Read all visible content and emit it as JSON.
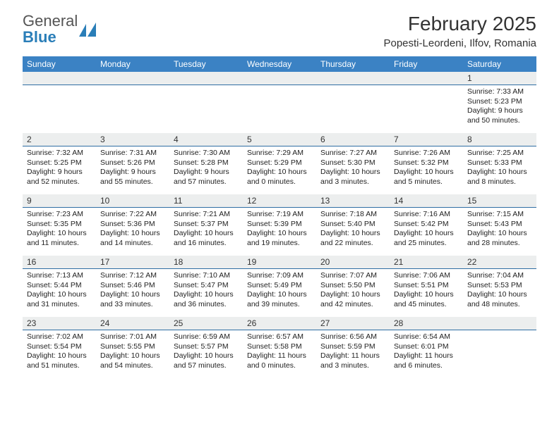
{
  "logo": {
    "text_general": "General",
    "text_blue": "Blue",
    "icon_color": "#2a7eb8"
  },
  "title": {
    "month": "February 2025",
    "location": "Popesti-Leordeni, Ilfov, Romania"
  },
  "colors": {
    "header_bg": "#3b82c4",
    "daynum_bg": "#eceeee",
    "daynum_border": "#2f6da3"
  },
  "fonts": {
    "title_size_pt": 21,
    "location_size_pt": 11,
    "dow_size_pt": 9,
    "daynum_size_pt": 9,
    "body_size_pt": 8
  },
  "days_of_week": [
    "Sunday",
    "Monday",
    "Tuesday",
    "Wednesday",
    "Thursday",
    "Friday",
    "Saturday"
  ],
  "weeks": [
    [
      {
        "num": "",
        "sunrise": "",
        "sunset": "",
        "daylight1": "",
        "daylight2": ""
      },
      {
        "num": "",
        "sunrise": "",
        "sunset": "",
        "daylight1": "",
        "daylight2": ""
      },
      {
        "num": "",
        "sunrise": "",
        "sunset": "",
        "daylight1": "",
        "daylight2": ""
      },
      {
        "num": "",
        "sunrise": "",
        "sunset": "",
        "daylight1": "",
        "daylight2": ""
      },
      {
        "num": "",
        "sunrise": "",
        "sunset": "",
        "daylight1": "",
        "daylight2": ""
      },
      {
        "num": "",
        "sunrise": "",
        "sunset": "",
        "daylight1": "",
        "daylight2": ""
      },
      {
        "num": "1",
        "sunrise": "Sunrise: 7:33 AM",
        "sunset": "Sunset: 5:23 PM",
        "daylight1": "Daylight: 9 hours",
        "daylight2": "and 50 minutes."
      }
    ],
    [
      {
        "num": "2",
        "sunrise": "Sunrise: 7:32 AM",
        "sunset": "Sunset: 5:25 PM",
        "daylight1": "Daylight: 9 hours",
        "daylight2": "and 52 minutes."
      },
      {
        "num": "3",
        "sunrise": "Sunrise: 7:31 AM",
        "sunset": "Sunset: 5:26 PM",
        "daylight1": "Daylight: 9 hours",
        "daylight2": "and 55 minutes."
      },
      {
        "num": "4",
        "sunrise": "Sunrise: 7:30 AM",
        "sunset": "Sunset: 5:28 PM",
        "daylight1": "Daylight: 9 hours",
        "daylight2": "and 57 minutes."
      },
      {
        "num": "5",
        "sunrise": "Sunrise: 7:29 AM",
        "sunset": "Sunset: 5:29 PM",
        "daylight1": "Daylight: 10 hours",
        "daylight2": "and 0 minutes."
      },
      {
        "num": "6",
        "sunrise": "Sunrise: 7:27 AM",
        "sunset": "Sunset: 5:30 PM",
        "daylight1": "Daylight: 10 hours",
        "daylight2": "and 3 minutes."
      },
      {
        "num": "7",
        "sunrise": "Sunrise: 7:26 AM",
        "sunset": "Sunset: 5:32 PM",
        "daylight1": "Daylight: 10 hours",
        "daylight2": "and 5 minutes."
      },
      {
        "num": "8",
        "sunrise": "Sunrise: 7:25 AM",
        "sunset": "Sunset: 5:33 PM",
        "daylight1": "Daylight: 10 hours",
        "daylight2": "and 8 minutes."
      }
    ],
    [
      {
        "num": "9",
        "sunrise": "Sunrise: 7:23 AM",
        "sunset": "Sunset: 5:35 PM",
        "daylight1": "Daylight: 10 hours",
        "daylight2": "and 11 minutes."
      },
      {
        "num": "10",
        "sunrise": "Sunrise: 7:22 AM",
        "sunset": "Sunset: 5:36 PM",
        "daylight1": "Daylight: 10 hours",
        "daylight2": "and 14 minutes."
      },
      {
        "num": "11",
        "sunrise": "Sunrise: 7:21 AM",
        "sunset": "Sunset: 5:37 PM",
        "daylight1": "Daylight: 10 hours",
        "daylight2": "and 16 minutes."
      },
      {
        "num": "12",
        "sunrise": "Sunrise: 7:19 AM",
        "sunset": "Sunset: 5:39 PM",
        "daylight1": "Daylight: 10 hours",
        "daylight2": "and 19 minutes."
      },
      {
        "num": "13",
        "sunrise": "Sunrise: 7:18 AM",
        "sunset": "Sunset: 5:40 PM",
        "daylight1": "Daylight: 10 hours",
        "daylight2": "and 22 minutes."
      },
      {
        "num": "14",
        "sunrise": "Sunrise: 7:16 AM",
        "sunset": "Sunset: 5:42 PM",
        "daylight1": "Daylight: 10 hours",
        "daylight2": "and 25 minutes."
      },
      {
        "num": "15",
        "sunrise": "Sunrise: 7:15 AM",
        "sunset": "Sunset: 5:43 PM",
        "daylight1": "Daylight: 10 hours",
        "daylight2": "and 28 minutes."
      }
    ],
    [
      {
        "num": "16",
        "sunrise": "Sunrise: 7:13 AM",
        "sunset": "Sunset: 5:44 PM",
        "daylight1": "Daylight: 10 hours",
        "daylight2": "and 31 minutes."
      },
      {
        "num": "17",
        "sunrise": "Sunrise: 7:12 AM",
        "sunset": "Sunset: 5:46 PM",
        "daylight1": "Daylight: 10 hours",
        "daylight2": "and 33 minutes."
      },
      {
        "num": "18",
        "sunrise": "Sunrise: 7:10 AM",
        "sunset": "Sunset: 5:47 PM",
        "daylight1": "Daylight: 10 hours",
        "daylight2": "and 36 minutes."
      },
      {
        "num": "19",
        "sunrise": "Sunrise: 7:09 AM",
        "sunset": "Sunset: 5:49 PM",
        "daylight1": "Daylight: 10 hours",
        "daylight2": "and 39 minutes."
      },
      {
        "num": "20",
        "sunrise": "Sunrise: 7:07 AM",
        "sunset": "Sunset: 5:50 PM",
        "daylight1": "Daylight: 10 hours",
        "daylight2": "and 42 minutes."
      },
      {
        "num": "21",
        "sunrise": "Sunrise: 7:06 AM",
        "sunset": "Sunset: 5:51 PM",
        "daylight1": "Daylight: 10 hours",
        "daylight2": "and 45 minutes."
      },
      {
        "num": "22",
        "sunrise": "Sunrise: 7:04 AM",
        "sunset": "Sunset: 5:53 PM",
        "daylight1": "Daylight: 10 hours",
        "daylight2": "and 48 minutes."
      }
    ],
    [
      {
        "num": "23",
        "sunrise": "Sunrise: 7:02 AM",
        "sunset": "Sunset: 5:54 PM",
        "daylight1": "Daylight: 10 hours",
        "daylight2": "and 51 minutes."
      },
      {
        "num": "24",
        "sunrise": "Sunrise: 7:01 AM",
        "sunset": "Sunset: 5:55 PM",
        "daylight1": "Daylight: 10 hours",
        "daylight2": "and 54 minutes."
      },
      {
        "num": "25",
        "sunrise": "Sunrise: 6:59 AM",
        "sunset": "Sunset: 5:57 PM",
        "daylight1": "Daylight: 10 hours",
        "daylight2": "and 57 minutes."
      },
      {
        "num": "26",
        "sunrise": "Sunrise: 6:57 AM",
        "sunset": "Sunset: 5:58 PM",
        "daylight1": "Daylight: 11 hours",
        "daylight2": "and 0 minutes."
      },
      {
        "num": "27",
        "sunrise": "Sunrise: 6:56 AM",
        "sunset": "Sunset: 5:59 PM",
        "daylight1": "Daylight: 11 hours",
        "daylight2": "and 3 minutes."
      },
      {
        "num": "28",
        "sunrise": "Sunrise: 6:54 AM",
        "sunset": "Sunset: 6:01 PM",
        "daylight1": "Daylight: 11 hours",
        "daylight2": "and 6 minutes."
      },
      {
        "num": "",
        "sunrise": "",
        "sunset": "",
        "daylight1": "",
        "daylight2": ""
      }
    ]
  ]
}
